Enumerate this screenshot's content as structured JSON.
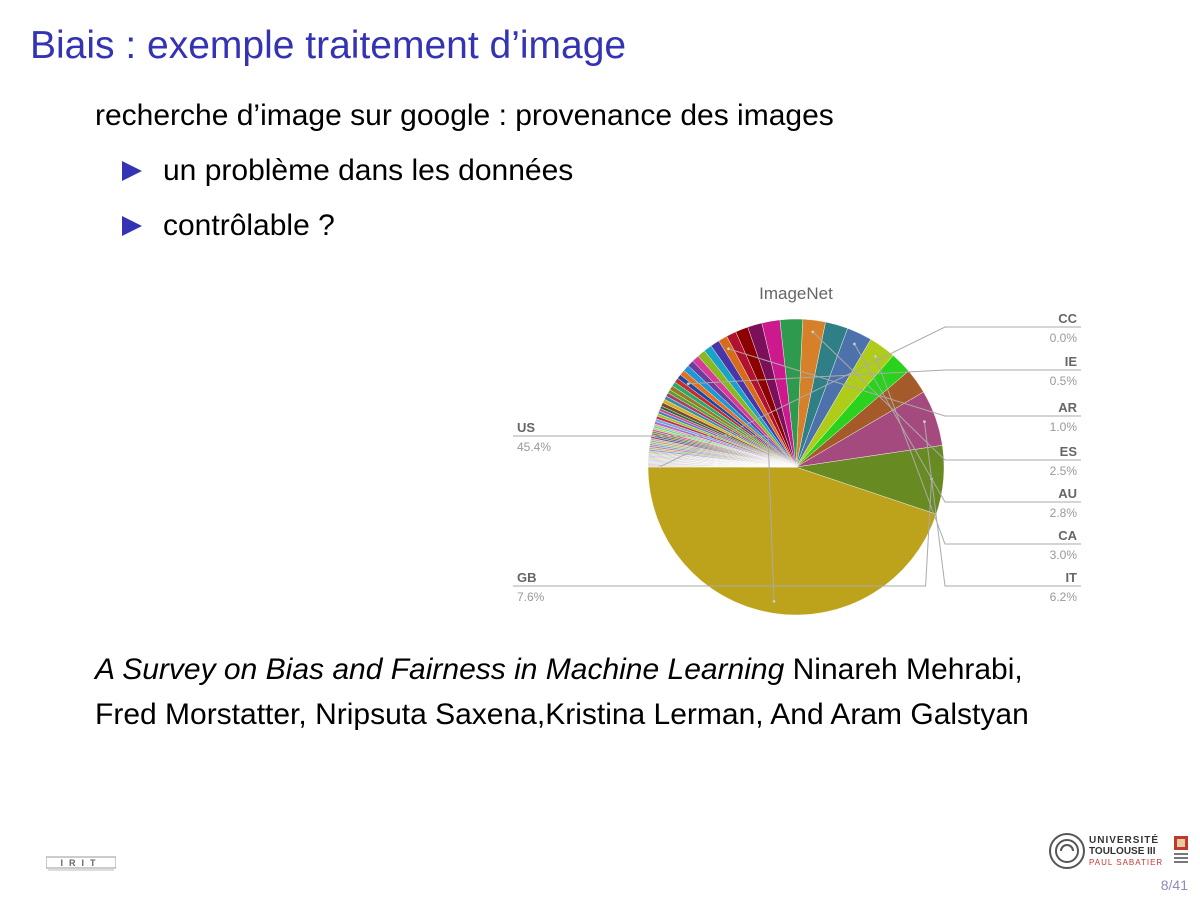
{
  "slide": {
    "title": "Biais : exemple traitement d’image",
    "intro": "recherche d’image sur google : provenance des images",
    "bullets": [
      "un problème dans les données",
      "contrôlable ?"
    ],
    "citation": {
      "title": "A Survey on Bias and Fairness in Machine Learning",
      "authors": "Ninareh Mehrabi, Fred Morstatter, Nripsuta Saxena,Kristina Lerman, And Aram Galstyan"
    },
    "page_number": "8/41"
  },
  "logos": {
    "left": "IRIT",
    "right_line1": "UNIVERSITÉ",
    "right_line2": "TOULOUSE III",
    "right_line3": "PAUL SABATIER"
  },
  "colors": {
    "accent": "#3333b3",
    "bullet": "#3333b3",
    "label_text": "#666666",
    "leader_line": "#aaaaaa",
    "page_number": "#8c8cc0"
  },
  "chart_data": {
    "type": "pie",
    "title": "ImageNet",
    "slices": [
      {
        "label": "US",
        "value": 45.4,
        "color": "#bca31b"
      },
      {
        "label": "GB",
        "value": 7.6,
        "color": "#688a22"
      },
      {
        "label": "IT",
        "value": 6.2,
        "color": "#a54a7e"
      },
      {
        "label": "",
        "value": 2.8,
        "color": "#a55a2a"
      },
      {
        "label": "",
        "value": 2.4,
        "color": "#2ad21e"
      },
      {
        "label": "CA",
        "value": 3.0,
        "color": "#b0cc1a"
      },
      {
        "label": "AU",
        "value": 2.8,
        "color": "#4d72ab"
      },
      {
        "label": "",
        "value": 2.5,
        "color": "#2e7f86"
      },
      {
        "label": "ES",
        "value": 2.5,
        "color": "#d6802a"
      },
      {
        "label": "",
        "value": 2.5,
        "color": "#2e9a4e"
      },
      {
        "label": "",
        "value": 2.0,
        "color": "#cc1a8e"
      },
      {
        "label": "",
        "value": 1.6,
        "color": "#7a0f5a"
      },
      {
        "label": "",
        "value": 1.4,
        "color": "#8c0000"
      },
      {
        "label": "",
        "value": 1.1,
        "color": "#b01230"
      },
      {
        "label": "AR",
        "value": 1.0,
        "color": "#d66b1a"
      },
      {
        "label": "",
        "value": 1.0,
        "color": "#4a35a8"
      },
      {
        "label": "",
        "value": 0.9,
        "color": "#1aa3c7"
      },
      {
        "label": "",
        "value": 0.9,
        "color": "#8ab81f"
      },
      {
        "label": "",
        "value": 0.8,
        "color": "#d63a9a"
      },
      {
        "label": "",
        "value": 0.7,
        "color": "#6a3d9a"
      },
      {
        "label": "",
        "value": 0.7,
        "color": "#2196d6"
      },
      {
        "label": "",
        "value": 0.6,
        "color": "#e3701a"
      },
      {
        "label": "IE",
        "value": 0.5,
        "color": "#1a4aa8"
      },
      {
        "label": "",
        "value": 0.5,
        "color": "#c72b2b"
      },
      {
        "label": "",
        "value": 0.5,
        "color": "#2aaa6a"
      },
      {
        "label": "",
        "value": 0.5,
        "color": "#9a7a2a"
      },
      {
        "label": "",
        "value": 0.4,
        "color": "#5aa02a"
      },
      {
        "label": "",
        "value": 0.4,
        "color": "#aa3a6a"
      },
      {
        "label": "",
        "value": 0.4,
        "color": "#3a8aaa"
      },
      {
        "label": "",
        "value": 0.4,
        "color": "#d6b21a"
      },
      {
        "label": "",
        "value": 0.4,
        "color": "#7a4a2a"
      },
      {
        "label": "",
        "value": 0.3,
        "color": "#2a6a3a"
      },
      {
        "label": "",
        "value": 0.3,
        "color": "#c74a8a"
      },
      {
        "label": "",
        "value": 0.3,
        "color": "#4a7ac7"
      },
      {
        "label": "",
        "value": 0.3,
        "color": "#9ac72a"
      },
      {
        "label": "",
        "value": 0.3,
        "color": "#c72a4a"
      },
      {
        "label": "",
        "value": 0.3,
        "color": "#6aaad6"
      },
      {
        "label": "",
        "value": 0.3,
        "color": "#aa6ad6"
      },
      {
        "label": "",
        "value": 0.2,
        "color": "#d6aa6a"
      },
      {
        "label": "",
        "value": 0.2,
        "color": "#4ad6aa"
      },
      {
        "label": "",
        "value": 0.2,
        "color": "#aad64a"
      },
      {
        "label": "",
        "value": 0.2,
        "color": "#d64aaa"
      },
      {
        "label": "",
        "value": 0.2,
        "color": "#6a8a4a"
      },
      {
        "label": "",
        "value": 0.2,
        "color": "#8a6a4a"
      },
      {
        "label": "",
        "value": 0.2,
        "color": "#4a6a8a"
      },
      {
        "label": "",
        "value": 0.2,
        "color": "#8a4a6a"
      },
      {
        "label": "",
        "value": 0.2,
        "color": "#b0b0b0"
      },
      {
        "label": "",
        "value": 0.2,
        "color": "#c0a080"
      },
      {
        "label": "",
        "value": 0.2,
        "color": "#a0c080"
      },
      {
        "label": "",
        "value": 0.2,
        "color": "#80a0c0"
      },
      {
        "label": "",
        "value": 0.2,
        "color": "#c080a0"
      },
      {
        "label": "",
        "value": 0.2,
        "color": "#d0b070"
      },
      {
        "label": "",
        "value": 0.2,
        "color": "#70b0d0"
      },
      {
        "label": "",
        "value": 0.1,
        "color": "#b070d0"
      },
      {
        "label": "",
        "value": 0.1,
        "color": "#d07070"
      },
      {
        "label": "",
        "value": 0.1,
        "color": "#70d070"
      },
      {
        "label": "",
        "value": 0.1,
        "color": "#cfae8a"
      },
      {
        "label": "",
        "value": 0.1,
        "color": "#8acfae"
      },
      {
        "label": "",
        "value": 0.1,
        "color": "#ae8acf"
      },
      {
        "label": "",
        "value": 0.1,
        "color": "#cf8aae"
      },
      {
        "label": "",
        "value": 0.1,
        "color": "#aecf8a"
      },
      {
        "label": "",
        "value": 0.1,
        "color": "#d8c090"
      },
      {
        "label": "",
        "value": 0.1,
        "color": "#90c0d8"
      },
      {
        "label": "",
        "value": 0.1,
        "color": "#c0a8d8"
      },
      {
        "label": "",
        "value": 0.1,
        "color": "#d8a8c0"
      },
      {
        "label": "",
        "value": 0.1,
        "color": "#c8c8a0"
      },
      {
        "label": "",
        "value": 0.1,
        "color": "#a0c8c8"
      },
      {
        "label": "",
        "value": 0.1,
        "color": "#c8a0c8"
      },
      {
        "label": "",
        "value": 0.1,
        "color": "#b8b8b8"
      },
      {
        "label": "",
        "value": 0.1,
        "color": "#d0c0b0"
      },
      {
        "label": "CC",
        "value": 0.05,
        "color": "#c8b89c"
      }
    ],
    "callouts": [
      {
        "label": "US",
        "pct": "45.4%",
        "side": "left"
      },
      {
        "label": "GB",
        "pct": "7.6%",
        "side": "left"
      },
      {
        "label": "CC",
        "pct": "0.0%",
        "side": "right"
      },
      {
        "label": "IE",
        "pct": "0.5%",
        "side": "right"
      },
      {
        "label": "AR",
        "pct": "1.0%",
        "side": "right"
      },
      {
        "label": "ES",
        "pct": "2.5%",
        "side": "right"
      },
      {
        "label": "AU",
        "pct": "2.8%",
        "side": "right"
      },
      {
        "label": "CA",
        "pct": "3.0%",
        "side": "right"
      },
      {
        "label": "IT",
        "pct": "6.2%",
        "side": "right"
      }
    ]
  }
}
